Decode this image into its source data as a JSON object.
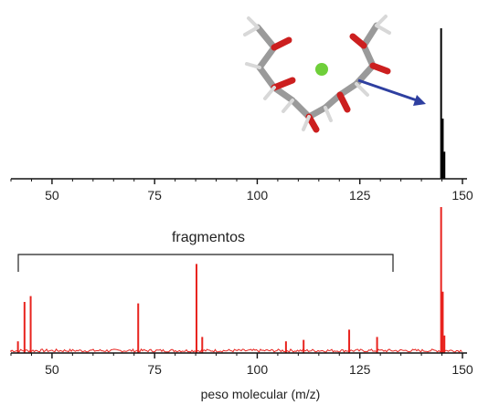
{
  "chart_data": [
    {
      "panel": "top",
      "type": "bar",
      "color": "#000000",
      "xlim": [
        40,
        150
      ],
      "xticks": [
        50,
        75,
        100,
        125,
        150
      ],
      "xlabel": "",
      "ylabel": "",
      "peaks": [
        {
          "x": 144.8,
          "y": 1.0
        },
        {
          "x": 145.2,
          "y": 0.4
        },
        {
          "x": 145.6,
          "y": 0.18
        }
      ],
      "inset": "molecule-image"
    },
    {
      "panel": "bottom",
      "type": "bar",
      "color": "#e8231e",
      "xlim": [
        40,
        150
      ],
      "xticks": [
        50,
        75,
        100,
        125,
        150
      ],
      "xlabel": "peso molecular (m/z)",
      "ylabel": "",
      "peaks": [
        {
          "x": 41.7,
          "y": 0.08
        },
        {
          "x": 43.3,
          "y": 0.35
        },
        {
          "x": 44.8,
          "y": 0.39
        },
        {
          "x": 71.0,
          "y": 0.34
        },
        {
          "x": 85.2,
          "y": 0.61
        },
        {
          "x": 86.6,
          "y": 0.11
        },
        {
          "x": 107.0,
          "y": 0.08
        },
        {
          "x": 111.3,
          "y": 0.09
        },
        {
          "x": 122.4,
          "y": 0.16
        },
        {
          "x": 129.2,
          "y": 0.11
        },
        {
          "x": 144.8,
          "y": 1.0
        },
        {
          "x": 145.2,
          "y": 0.42
        },
        {
          "x": 145.6,
          "y": 0.12
        }
      ],
      "annotation": {
        "text": "fragmentos",
        "x_from": 40.5,
        "x_to": 133
      }
    }
  ]
}
